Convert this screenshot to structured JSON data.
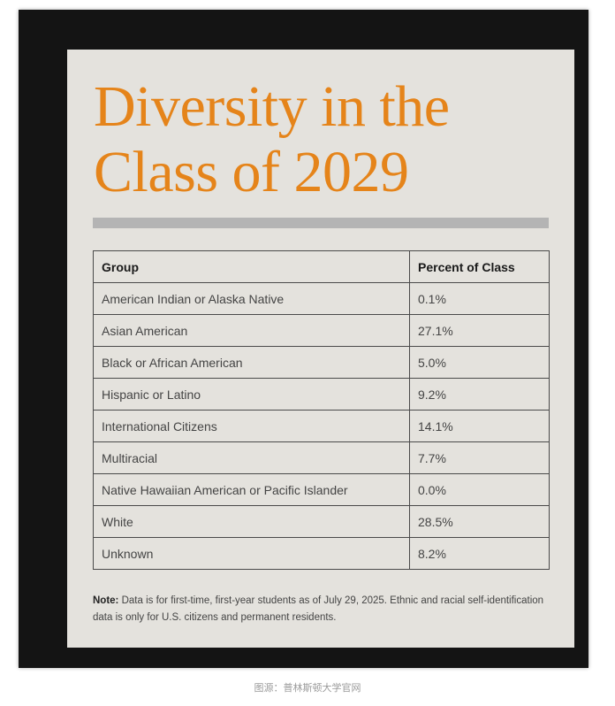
{
  "title_line1": "Diversity in the",
  "title_line2": "Class of 2029",
  "table": {
    "headers": [
      "Group",
      "Percent of Class"
    ],
    "rows": [
      {
        "group": "American Indian or Alaska Native",
        "percent": "0.1%"
      },
      {
        "group": "Asian American",
        "percent": "27.1%"
      },
      {
        "group": "Black or African American",
        "percent": "5.0%"
      },
      {
        "group": "Hispanic or Latino",
        "percent": "9.2%"
      },
      {
        "group": "International Citizens",
        "percent": "14.1%"
      },
      {
        "group": "Multiracial",
        "percent": "7.7%"
      },
      {
        "group": "Native Hawaiian American or Pacific Islander",
        "percent": "0.0%"
      },
      {
        "group": "White",
        "percent": "28.5%"
      },
      {
        "group": "Unknown",
        "percent": "8.2%"
      }
    ]
  },
  "note": {
    "label": "Note:",
    "text": "Data is for first-time, first-year students as of July 29, 2025. Ethnic and racial self-identification data is only for U.S. citizens and permanent residents."
  },
  "caption": "图源：普林斯顿大学官网",
  "colors": {
    "title": "#e5841a",
    "frame": "#141414",
    "card": "#e4e2dd",
    "rule": "#b4b4b4"
  }
}
